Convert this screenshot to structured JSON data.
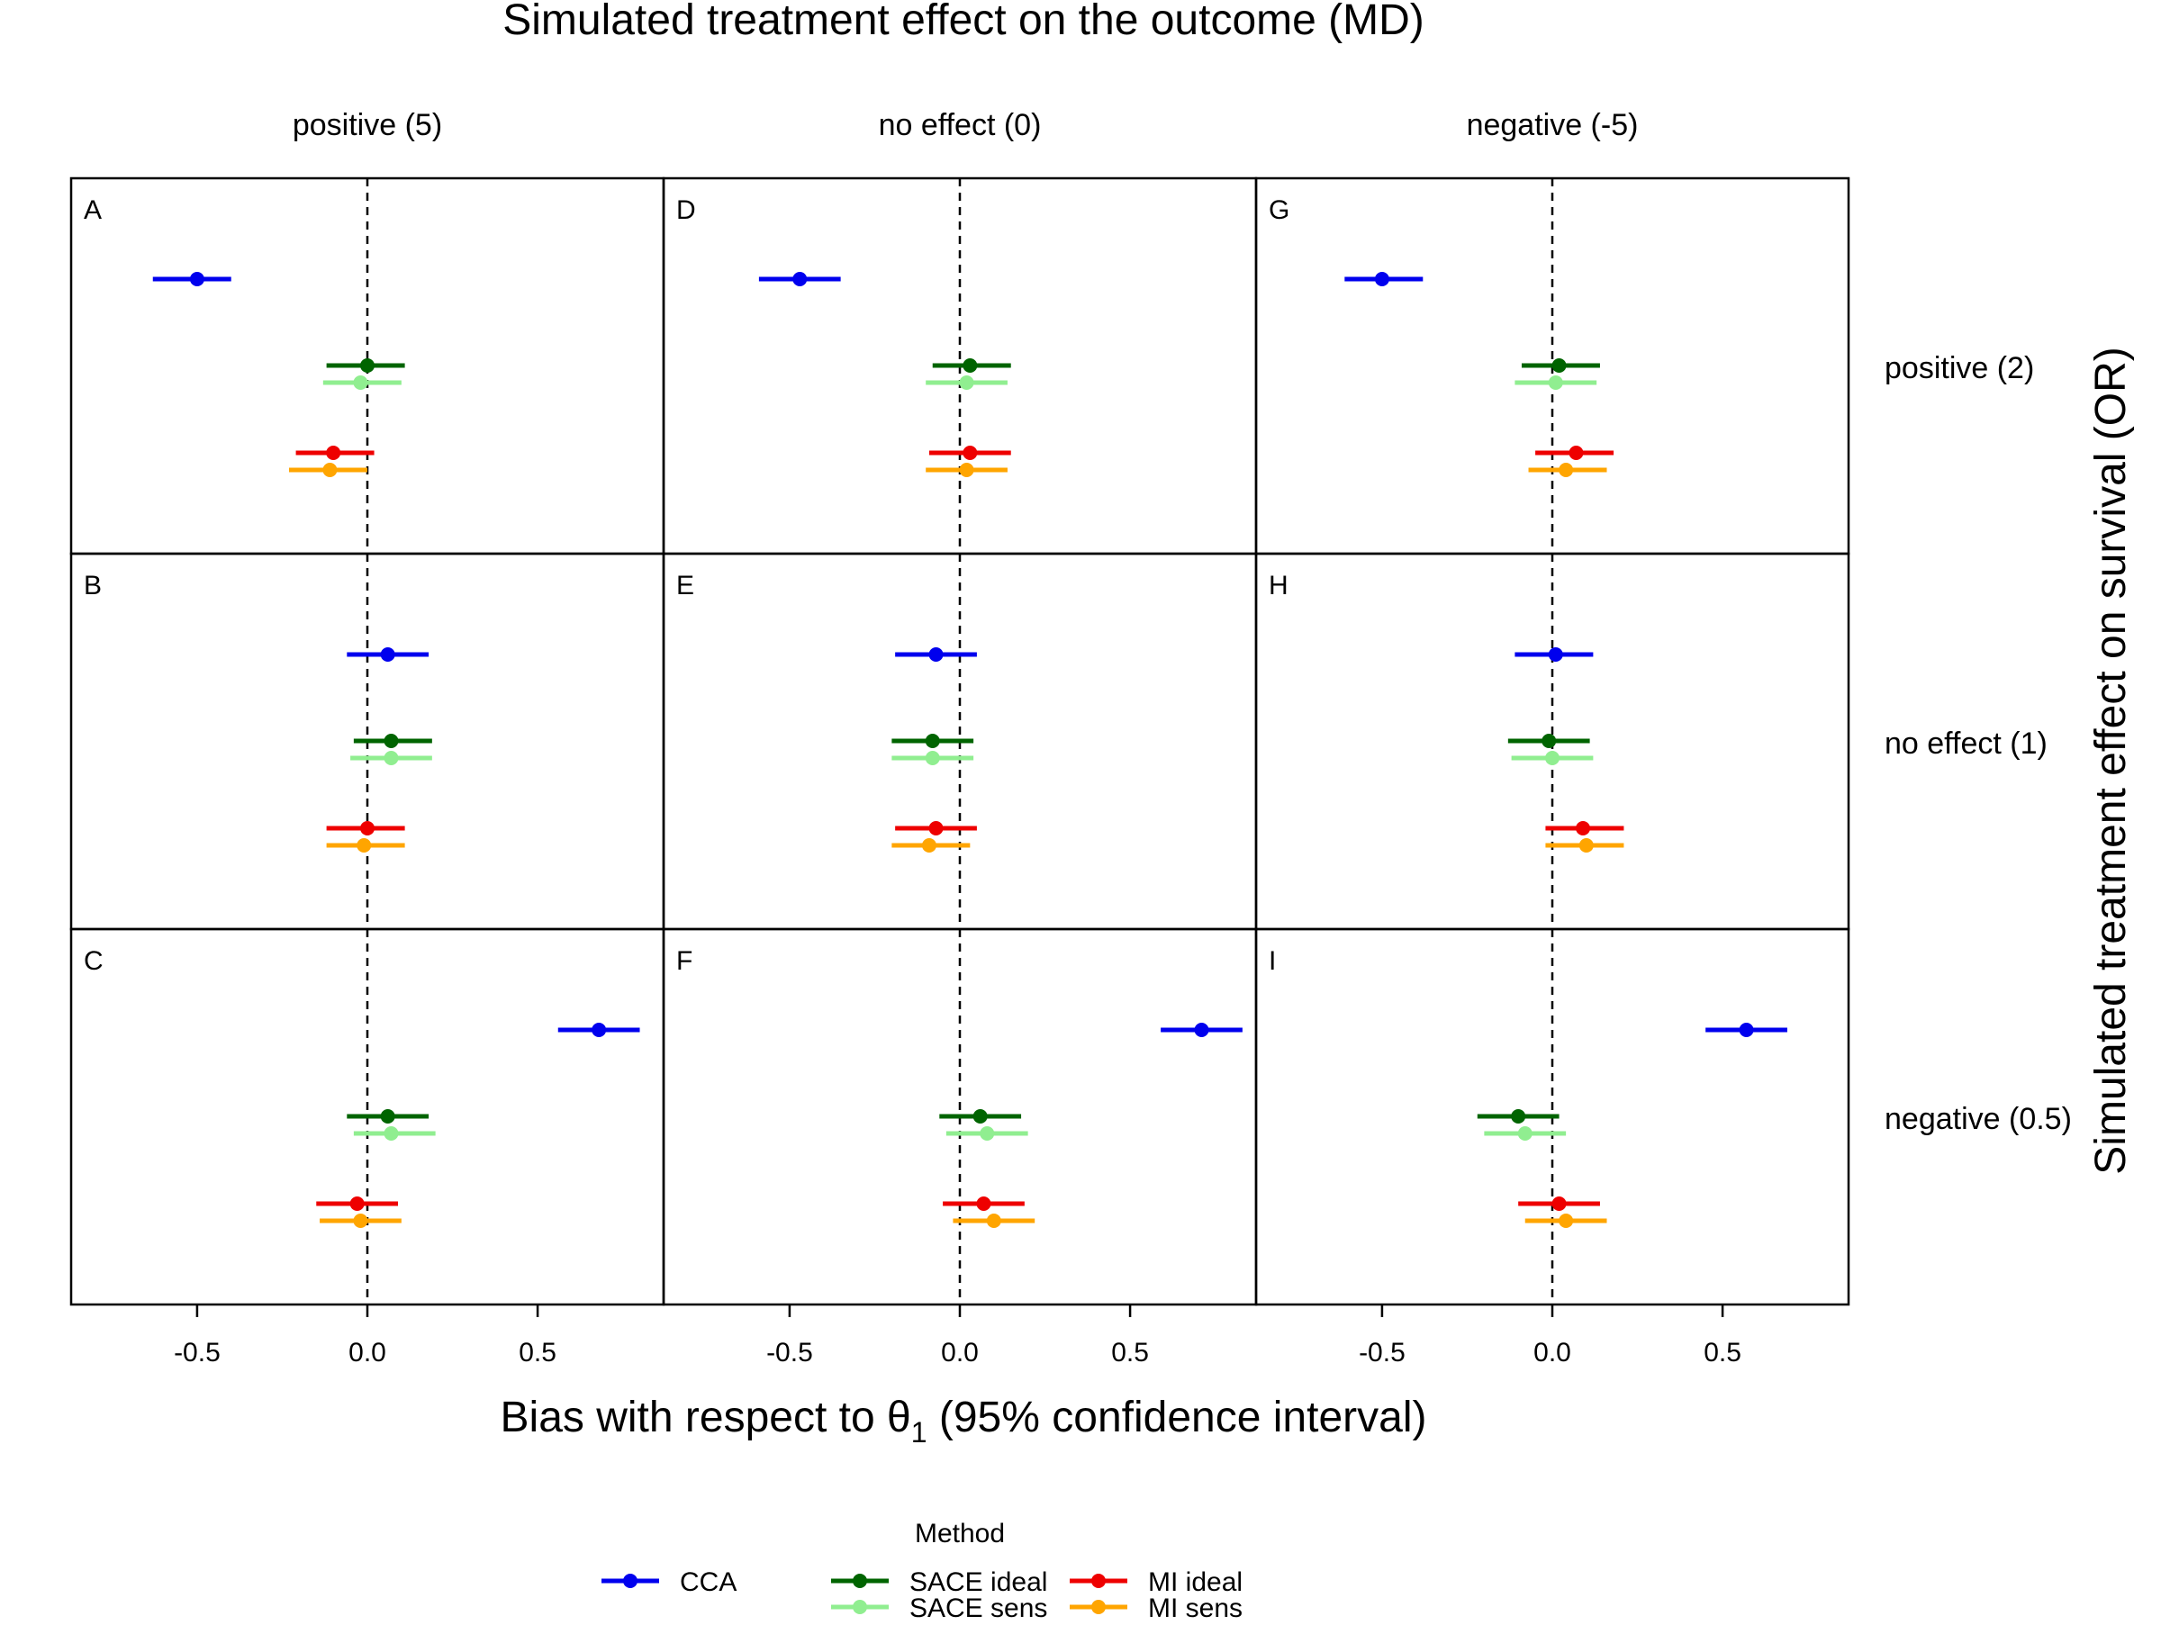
{
  "chart_data": {
    "type": "forest-plot-grid",
    "title": "Simulated treatment effect on the outcome (MD)",
    "xlabel_pre": "Bias with respect to θ",
    "xlabel_sub": "1",
    "xlabel_post": " (95% confidence interval)",
    "ylabel": "Simulated treatment effect on survival (OR)",
    "xlim": [
      -0.87,
      0.87
    ],
    "xticks": [
      -0.5,
      0.0,
      0.5
    ],
    "xtick_labels": [
      "-0.5",
      "0.0",
      "0.5"
    ],
    "reference_line": 0,
    "columns": [
      "positive (5)",
      "no effect (0)",
      "negative (-5)"
    ],
    "rows": [
      "positive (2)",
      "no effect (1)",
      "negative (0.5)"
    ],
    "legend": {
      "title": "Method",
      "entries": [
        {
          "name": "CCA",
          "color": "#0000ee"
        },
        {
          "name": "SACE ideal",
          "color": "#006400"
        },
        {
          "name": "SACE sens",
          "color": "#90ee90"
        },
        {
          "name": "MI ideal",
          "color": "#ee0000"
        },
        {
          "name": "MI sens",
          "color": "#ffa500"
        }
      ]
    },
    "series_colors": [
      "#0000ee",
      "#006400",
      "#90ee90",
      "#ee0000",
      "#ffa500"
    ],
    "panels": [
      {
        "letter": "A",
        "row": 0,
        "col": 0,
        "estimates": [
          {
            "method": "CCA",
            "est": -0.5,
            "lo": -0.63,
            "hi": -0.4
          },
          {
            "method": "SACE ideal",
            "est": 0.0,
            "lo": -0.12,
            "hi": 0.11
          },
          {
            "method": "SACE sens",
            "est": -0.02,
            "lo": -0.13,
            "hi": 0.1
          },
          {
            "method": "MI ideal",
            "est": -0.1,
            "lo": -0.21,
            "hi": 0.02
          },
          {
            "method": "MI sens",
            "est": -0.11,
            "lo": -0.23,
            "hi": 0.0
          }
        ]
      },
      {
        "letter": "B",
        "row": 1,
        "col": 0,
        "estimates": [
          {
            "method": "CCA",
            "est": 0.06,
            "lo": -0.06,
            "hi": 0.18
          },
          {
            "method": "SACE ideal",
            "est": 0.07,
            "lo": -0.04,
            "hi": 0.19
          },
          {
            "method": "SACE sens",
            "est": 0.07,
            "lo": -0.05,
            "hi": 0.19
          },
          {
            "method": "MI ideal",
            "est": 0.0,
            "lo": -0.12,
            "hi": 0.11
          },
          {
            "method": "MI sens",
            "est": -0.01,
            "lo": -0.12,
            "hi": 0.11
          }
        ]
      },
      {
        "letter": "C",
        "row": 2,
        "col": 0,
        "estimates": [
          {
            "method": "CCA",
            "est": 0.68,
            "lo": 0.56,
            "hi": 0.8
          },
          {
            "method": "SACE ideal",
            "est": 0.06,
            "lo": -0.06,
            "hi": 0.18
          },
          {
            "method": "SACE sens",
            "est": 0.07,
            "lo": -0.04,
            "hi": 0.2
          },
          {
            "method": "MI ideal",
            "est": -0.03,
            "lo": -0.15,
            "hi": 0.09
          },
          {
            "method": "MI sens",
            "est": -0.02,
            "lo": -0.14,
            "hi": 0.1
          }
        ]
      },
      {
        "letter": "D",
        "row": 0,
        "col": 1,
        "estimates": [
          {
            "method": "CCA",
            "est": -0.47,
            "lo": -0.59,
            "hi": -0.35
          },
          {
            "method": "SACE ideal",
            "est": 0.03,
            "lo": -0.08,
            "hi": 0.15
          },
          {
            "method": "SACE sens",
            "est": 0.02,
            "lo": -0.1,
            "hi": 0.14
          },
          {
            "method": "MI ideal",
            "est": 0.03,
            "lo": -0.09,
            "hi": 0.15
          },
          {
            "method": "MI sens",
            "est": 0.02,
            "lo": -0.1,
            "hi": 0.14
          }
        ]
      },
      {
        "letter": "E",
        "row": 1,
        "col": 1,
        "estimates": [
          {
            "method": "CCA",
            "est": -0.07,
            "lo": -0.19,
            "hi": 0.05
          },
          {
            "method": "SACE ideal",
            "est": -0.08,
            "lo": -0.2,
            "hi": 0.04
          },
          {
            "method": "SACE sens",
            "est": -0.08,
            "lo": -0.2,
            "hi": 0.04
          },
          {
            "method": "MI ideal",
            "est": -0.07,
            "lo": -0.19,
            "hi": 0.05
          },
          {
            "method": "MI sens",
            "est": -0.09,
            "lo": -0.2,
            "hi": 0.03
          }
        ]
      },
      {
        "letter": "F",
        "row": 2,
        "col": 1,
        "estimates": [
          {
            "method": "CCA",
            "est": 0.71,
            "lo": 0.59,
            "hi": 0.83
          },
          {
            "method": "SACE ideal",
            "est": 0.06,
            "lo": -0.06,
            "hi": 0.18
          },
          {
            "method": "SACE sens",
            "est": 0.08,
            "lo": -0.04,
            "hi": 0.2
          },
          {
            "method": "MI ideal",
            "est": 0.07,
            "lo": -0.05,
            "hi": 0.19
          },
          {
            "method": "MI sens",
            "est": 0.1,
            "lo": -0.02,
            "hi": 0.22
          }
        ]
      },
      {
        "letter": "G",
        "row": 0,
        "col": 2,
        "estimates": [
          {
            "method": "CCA",
            "est": -0.5,
            "lo": -0.61,
            "hi": -0.38
          },
          {
            "method": "SACE ideal",
            "est": 0.02,
            "lo": -0.09,
            "hi": 0.14
          },
          {
            "method": "SACE sens",
            "est": 0.01,
            "lo": -0.11,
            "hi": 0.13
          },
          {
            "method": "MI ideal",
            "est": 0.07,
            "lo": -0.05,
            "hi": 0.18
          },
          {
            "method": "MI sens",
            "est": 0.04,
            "lo": -0.07,
            "hi": 0.16
          }
        ]
      },
      {
        "letter": "H",
        "row": 1,
        "col": 2,
        "estimates": [
          {
            "method": "CCA",
            "est": 0.01,
            "lo": -0.11,
            "hi": 0.12
          },
          {
            "method": "SACE ideal",
            "est": -0.01,
            "lo": -0.13,
            "hi": 0.11
          },
          {
            "method": "SACE sens",
            "est": 0.0,
            "lo": -0.12,
            "hi": 0.12
          },
          {
            "method": "MI ideal",
            "est": 0.09,
            "lo": -0.02,
            "hi": 0.21
          },
          {
            "method": "MI sens",
            "est": 0.1,
            "lo": -0.02,
            "hi": 0.21
          }
        ]
      },
      {
        "letter": "I",
        "row": 2,
        "col": 2,
        "estimates": [
          {
            "method": "CCA",
            "est": 0.57,
            "lo": 0.45,
            "hi": 0.69
          },
          {
            "method": "SACE ideal",
            "est": -0.1,
            "lo": -0.22,
            "hi": 0.02
          },
          {
            "method": "SACE sens",
            "est": -0.08,
            "lo": -0.2,
            "hi": 0.04
          },
          {
            "method": "MI ideal",
            "est": 0.02,
            "lo": -0.1,
            "hi": 0.14
          },
          {
            "method": "MI sens",
            "est": 0.04,
            "lo": -0.08,
            "hi": 0.16
          }
        ]
      }
    ]
  }
}
